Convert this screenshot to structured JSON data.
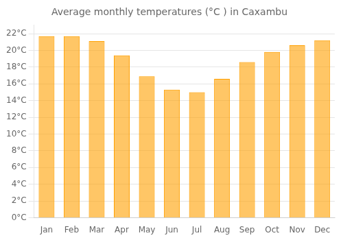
{
  "chart_data": {
    "type": "bar",
    "title": "Average monthly temperatures (°C ) in Caxambu",
    "categories": [
      "Jan",
      "Feb",
      "Mar",
      "Apr",
      "May",
      "Jun",
      "Jul",
      "Aug",
      "Sep",
      "Oct",
      "Nov",
      "Dec"
    ],
    "values": [
      21.7,
      21.7,
      21.1,
      19.4,
      16.9,
      15.3,
      15.0,
      16.6,
      18.6,
      19.8,
      20.6,
      21.2
    ],
    "color": "#FFA000",
    "ylim": [
      0,
      23
    ],
    "yticks": [
      {
        "value": 0,
        "label": "0°C"
      },
      {
        "value": 2,
        "label": "2°C"
      },
      {
        "value": 4,
        "label": "4°C"
      },
      {
        "value": 6,
        "label": "6°C"
      },
      {
        "value": 8,
        "label": "8°C"
      },
      {
        "value": 10,
        "label": "10°C"
      },
      {
        "value": 12,
        "label": "12°C"
      },
      {
        "value": 14,
        "label": "14°C"
      },
      {
        "value": 16,
        "label": "16°C"
      },
      {
        "value": 18,
        "label": "18°C"
      },
      {
        "value": 20,
        "label": "20°C"
      },
      {
        "value": 22,
        "label": "22°C"
      }
    ],
    "grid": true
  }
}
